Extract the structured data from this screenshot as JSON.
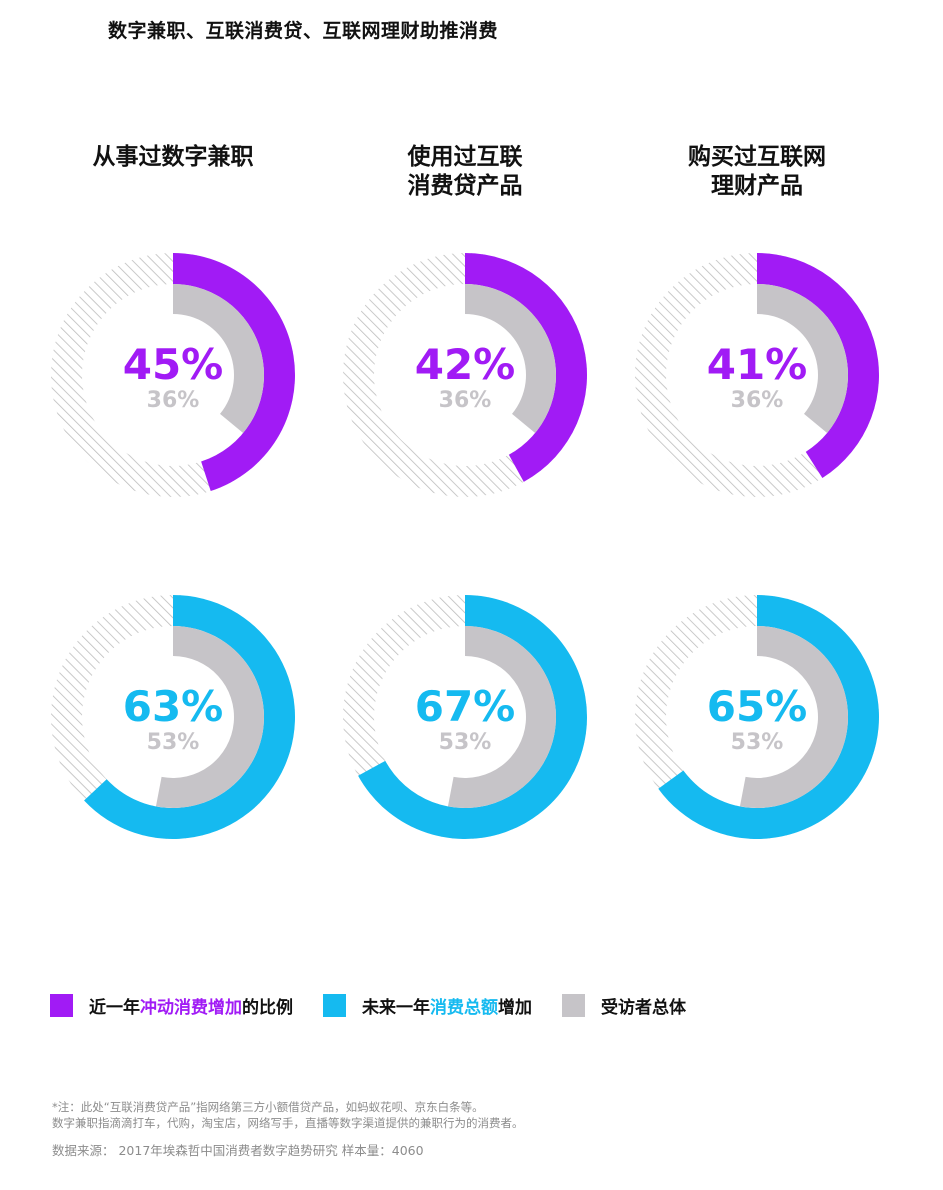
{
  "title": "数字兼职、互联消费贷、互联网理财助推消费",
  "columns": [
    "从事过数字兼职",
    "使用过互联\n消费贷产品",
    "购买过互联网\n理财产品"
  ],
  "colors": {
    "purple": "#a11bf5",
    "blue": "#15baf0",
    "gray": "#c6c4c8",
    "hatch": "#bdbdbd"
  },
  "chart_data": [
    {
      "type": "pie",
      "row": "近一年冲动消费增加的比例",
      "column": "从事过数字兼职",
      "value": 45,
      "value_label": "45%",
      "baseline": 36,
      "baseline_label": "36%",
      "color": "#a11bf5"
    },
    {
      "type": "pie",
      "row": "近一年冲动消费增加的比例",
      "column": "使用过互联消费贷产品",
      "value": 42,
      "value_label": "42%",
      "baseline": 36,
      "baseline_label": "36%",
      "color": "#a11bf5"
    },
    {
      "type": "pie",
      "row": "近一年冲动消费增加的比例",
      "column": "购买过互联网理财产品",
      "value": 41,
      "value_label": "41%",
      "baseline": 36,
      "baseline_label": "36%",
      "color": "#a11bf5"
    },
    {
      "type": "pie",
      "row": "未来一年消费总额增加",
      "column": "从事过数字兼职",
      "value": 63,
      "value_label": "63%",
      "baseline": 53,
      "baseline_label": "53%",
      "color": "#15baf0"
    },
    {
      "type": "pie",
      "row": "未来一年消费总额增加",
      "column": "使用过互联消费贷产品",
      "value": 67,
      "value_label": "67%",
      "baseline": 53,
      "baseline_label": "53%",
      "color": "#15baf0"
    },
    {
      "type": "pie",
      "row": "未来一年消费总额增加",
      "column": "购买过互联网理财产品",
      "value": 65,
      "value_label": "65%",
      "baseline": 53,
      "baseline_label": "53%",
      "color": "#15baf0"
    }
  ],
  "legend": [
    {
      "pre": "近一年",
      "hl": "冲动消费增加",
      "post": "的比例",
      "color": "#a11bf5",
      "hl_class": "hl-purple"
    },
    {
      "pre": "未来一年",
      "hl": "消费总额",
      "post": "增加",
      "color": "#15baf0",
      "hl_class": "hl-blue"
    },
    {
      "pre": "受访者总体",
      "hl": "",
      "post": "",
      "color": "#c6c4c8",
      "hl_class": ""
    }
  ],
  "footnotes": {
    "note1": "*注：此处“互联消费贷产品”指网络第三方小额借贷产品，如蚂蚁花呗、京东白条等。",
    "note2": "数字兼职指滴滴打车，代购，淘宝店，网络写手，直播等数字渠道提供的兼职行为的消费者。",
    "source": "数据来源： 2017年埃森哲中国消费者数字趋势研究 样本量：4060"
  }
}
